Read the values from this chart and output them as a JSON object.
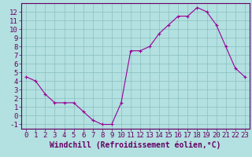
{
  "x": [
    0,
    1,
    2,
    3,
    4,
    5,
    6,
    7,
    8,
    9,
    10,
    11,
    12,
    13,
    14,
    15,
    16,
    17,
    18,
    19,
    20,
    21,
    22,
    23
  ],
  "y": [
    4.5,
    4.0,
    2.5,
    1.5,
    1.5,
    1.5,
    0.5,
    -0.5,
    -1.0,
    -1.0,
    1.5,
    7.5,
    7.5,
    8.0,
    9.5,
    10.5,
    11.5,
    11.5,
    12.5,
    12.0,
    10.5,
    8.0,
    5.5,
    4.5
  ],
  "line_color": "#990099",
  "marker": "+",
  "marker_color": "#990099",
  "bg_color": "#b3e0e0",
  "grid_color": "#8abfbf",
  "xlabel": "Windchill (Refroidissement éolien,°C)",
  "xlabel_color": "#660066",
  "tick_color": "#660066",
  "axis_color": "#660066",
  "ylim": [
    -1.5,
    13.0
  ],
  "xlim": [
    -0.5,
    23.5
  ],
  "yticks": [
    -1,
    0,
    1,
    2,
    3,
    4,
    5,
    6,
    7,
    8,
    9,
    10,
    11,
    12
  ],
  "xticks": [
    0,
    1,
    2,
    3,
    4,
    5,
    6,
    7,
    8,
    9,
    10,
    11,
    12,
    13,
    14,
    15,
    16,
    17,
    18,
    19,
    20,
    21,
    22,
    23
  ],
  "tick_fontsize": 6.5,
  "xlabel_fontsize": 7.0
}
